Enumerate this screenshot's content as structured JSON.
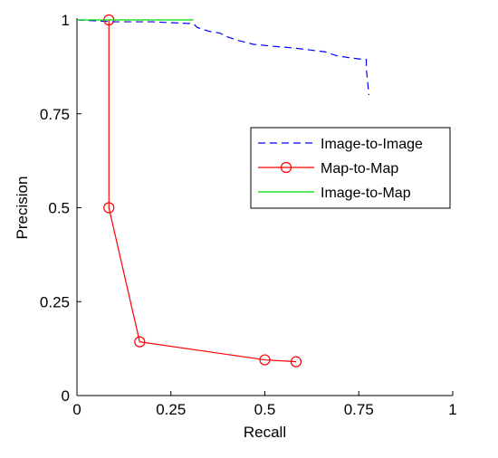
{
  "chart_data": {
    "type": "line",
    "title": "",
    "xlabel": "Recall",
    "ylabel": "Precision",
    "xlim": [
      0,
      1
    ],
    "ylim": [
      0,
      1
    ],
    "x_ticks": [
      0,
      0.25,
      0.5,
      0.75,
      1
    ],
    "x_tick_labels": [
      "0",
      "0.25",
      "0.5",
      "0.75",
      "1"
    ],
    "y_ticks": [
      0,
      0.25,
      0.5,
      0.75,
      1
    ],
    "y_tick_labels": [
      "0",
      "0.25",
      "0.5",
      "0.75",
      "1"
    ],
    "grid": false,
    "legend_position": "right",
    "series": [
      {
        "name": "Image-to-Image",
        "color": "#0000ff",
        "style": "dashed",
        "marker": "none",
        "x": [
          0.0,
          0.1,
          0.2,
          0.31,
          0.32,
          0.35,
          0.38,
          0.4,
          0.43,
          0.47,
          0.52,
          0.58,
          0.62,
          0.66,
          0.69,
          0.72,
          0.76,
          0.77,
          0.77,
          0.777
        ],
        "y": [
          1.0,
          0.995,
          0.995,
          0.99,
          0.98,
          0.97,
          0.965,
          0.955,
          0.945,
          0.935,
          0.93,
          0.925,
          0.92,
          0.915,
          0.905,
          0.9,
          0.895,
          0.895,
          0.87,
          0.8
        ]
      },
      {
        "name": "Map-to-Map",
        "color": "#ff0000",
        "style": "solid",
        "marker": "circle",
        "x": [
          0.085,
          0.085,
          0.167,
          0.5,
          0.583
        ],
        "y": [
          1.0,
          0.5,
          0.143,
          0.095,
          0.09
        ]
      },
      {
        "name": "Image-to-Map",
        "color": "#00dd00",
        "style": "solid",
        "marker": "none",
        "x": [
          0.0,
          0.31
        ],
        "y": [
          1.0,
          1.0
        ]
      }
    ]
  }
}
